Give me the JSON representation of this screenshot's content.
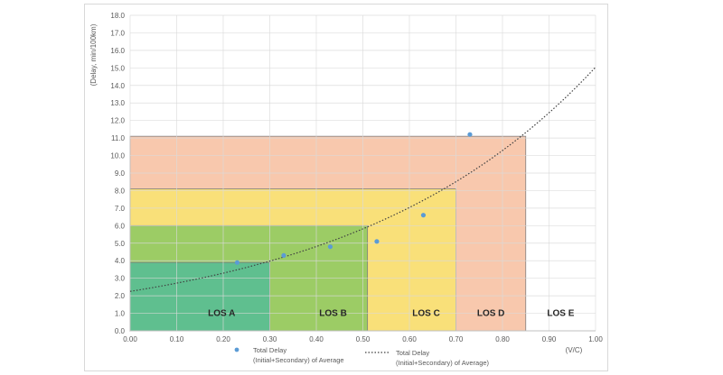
{
  "chart_data": {
    "type": "scatter",
    "ylabel": "(Delay, min/100km)",
    "xlabel": "(V/C)",
    "xlim": [
      0.0,
      1.0
    ],
    "ylim": [
      0.0,
      18.0
    ],
    "x_ticks": [
      "0.00",
      "0.10",
      "0.20",
      "0.30",
      "0.40",
      "0.50",
      "0.60",
      "0.70",
      "0.80",
      "0.90",
      "1.00"
    ],
    "y_ticks": [
      "0.0",
      "1.0",
      "2.0",
      "3.0",
      "4.0",
      "5.0",
      "6.0",
      "7.0",
      "8.0",
      "9.0",
      "10.0",
      "11.0",
      "12.0",
      "13.0",
      "14.0",
      "15.0",
      "16.0",
      "17.0",
      "18.0"
    ],
    "grid": true,
    "los_zones": [
      {
        "label": "LOS A",
        "x_max": 0.3,
        "y_max": 3.9,
        "color": "#5fbf8f"
      },
      {
        "label": "LOS B",
        "x_max": 0.51,
        "y_max": 6.0,
        "color": "#9ccc65"
      },
      {
        "label": "LOS C",
        "x_max": 0.7,
        "y_max": 8.1,
        "color": "#f9e079"
      },
      {
        "label": "LOS D",
        "x_max": 0.85,
        "y_max": 11.1,
        "color": "#f8c8ad"
      },
      {
        "label": "LOS E",
        "x_max": 1.0,
        "y_max": 0,
        "color": "#ffffff"
      }
    ],
    "series": [
      {
        "name": "Total Delay\n(Initial+Secondary) of Average",
        "type": "scatter",
        "color": "#5b9bd5",
        "points": [
          {
            "x": 0.23,
            "y": 3.9
          },
          {
            "x": 0.33,
            "y": 4.3
          },
          {
            "x": 0.43,
            "y": 4.8
          },
          {
            "x": 0.53,
            "y": 5.1
          },
          {
            "x": 0.63,
            "y": 6.6
          },
          {
            "x": 0.73,
            "y": 11.2
          }
        ]
      },
      {
        "name": "Total Delay\n(Initial+Secondary) of Average)",
        "type": "trendline-exponential",
        "color": "#404040",
        "a": 2.25,
        "b": 1.9
      }
    ],
    "legend_position": "bottom"
  }
}
